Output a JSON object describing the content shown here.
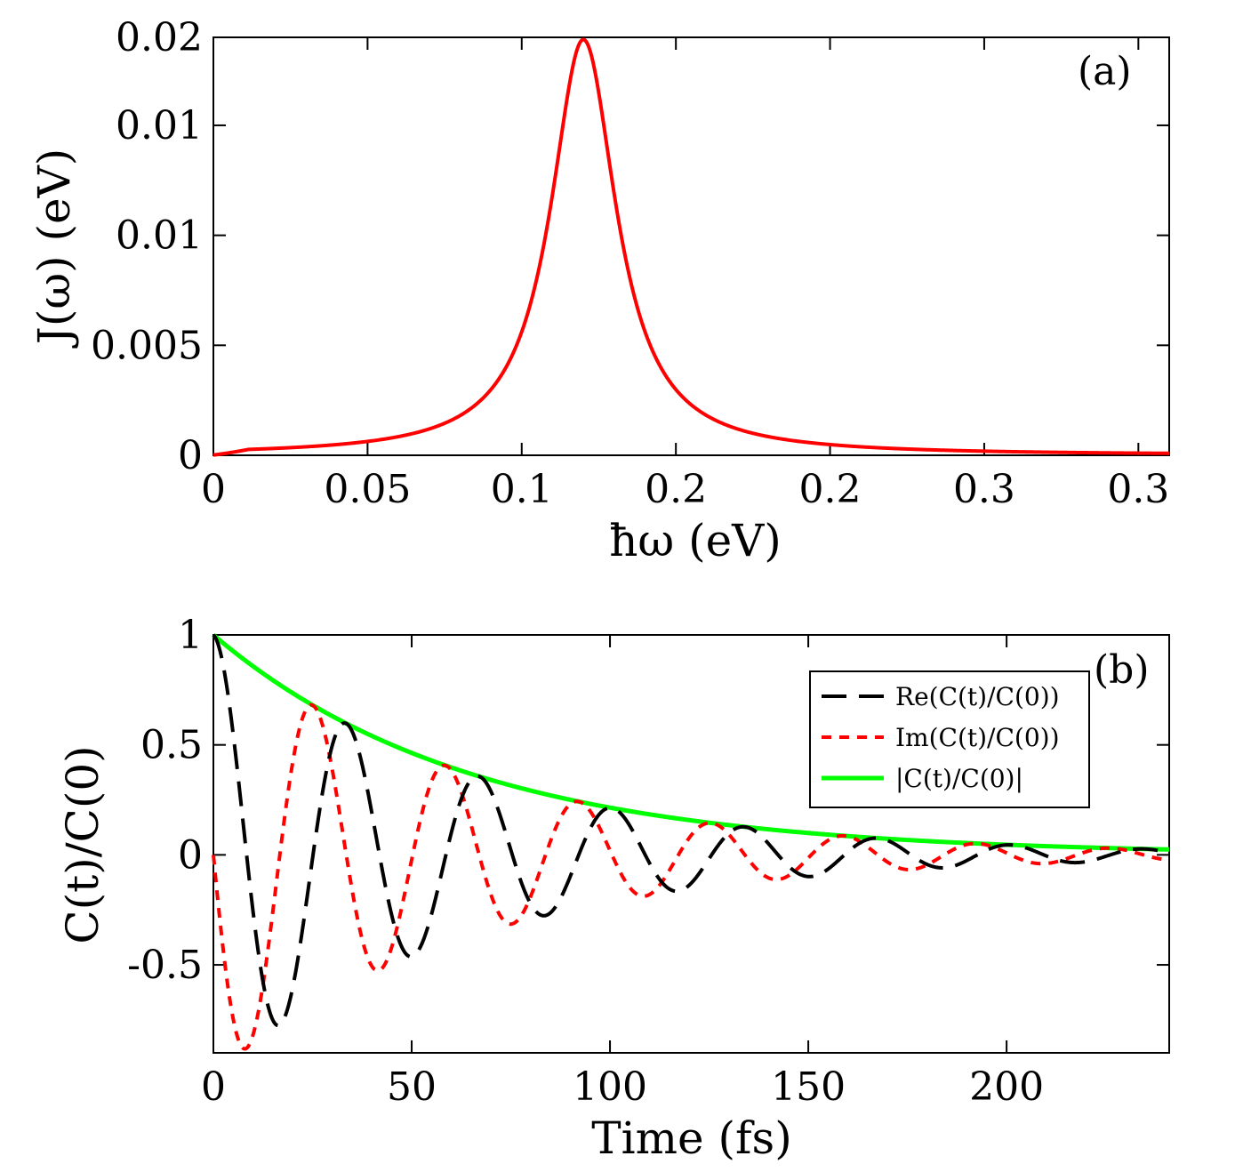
{
  "chart_data": [
    {
      "type": "line",
      "panel_label": "(a)",
      "xlabel": "ħω (eV)",
      "ylabel": "J(ω) (eV)",
      "xlim": [
        0,
        0.31
      ],
      "ylim": [
        0,
        0.019
      ],
      "x_tick_values": [
        0,
        0.05,
        0.1,
        0.15,
        0.2,
        0.25,
        0.3
      ],
      "x_tick_labels": [
        "0",
        "0.05",
        "0.1",
        "0.2",
        "0.2",
        "0.3",
        "0.3"
      ],
      "y_tick_values": [
        0,
        0.005,
        0.01,
        0.015,
        0.019
      ],
      "y_tick_labels": [
        "0",
        "0.005",
        "0.01",
        "0.01",
        "0.02"
      ],
      "series": [
        {
          "name": "J(ω)",
          "color": "#ff0000",
          "style": "solid",
          "model": "lorentzian",
          "peak_x": 0.12,
          "peak_y": 0.0189,
          "half_width": 0.013
        }
      ]
    },
    {
      "type": "line",
      "panel_label": "(b)",
      "xlabel": "Time (fs)",
      "ylabel": "C(t)/C(0)",
      "xlim": [
        0,
        241
      ],
      "ylim": [
        -0.9,
        1.0
      ],
      "x_tick_values": [
        0,
        50,
        100,
        150,
        200
      ],
      "x_tick_labels": [
        "0",
        "50",
        "100",
        "150",
        "200"
      ],
      "y_tick_values": [
        -0.5,
        0,
        0.5,
        1
      ],
      "y_tick_labels": [
        "-0.5",
        "0",
        "0.5",
        "1"
      ],
      "legend_position": "top-right",
      "model": {
        "decay_time_fs": 65,
        "period_fs": 33.5
      },
      "series": [
        {
          "name": "Re(C(t)/C(0))",
          "color": "#000000",
          "style": "dashed",
          "part": "real"
        },
        {
          "name": "Im(C(t)/C(0))",
          "color": "#ff0000",
          "style": "dotted",
          "part": "imag"
        },
        {
          "name": "|C(t)/C(0)|",
          "color": "#00ff00",
          "style": "solid",
          "part": "abs"
        }
      ]
    }
  ]
}
